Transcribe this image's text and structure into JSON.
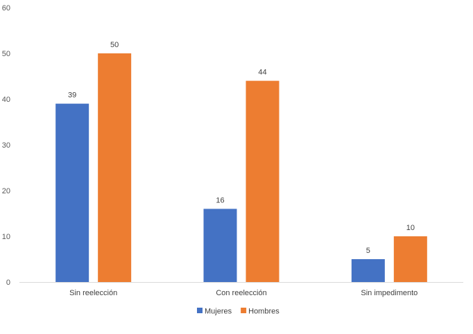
{
  "chart_data": {
    "type": "bar",
    "categories": [
      "Sin reelección",
      "Con reelección",
      "Sin impedimento"
    ],
    "series": [
      {
        "name": "Mujeres",
        "values": [
          39,
          16,
          5
        ],
        "color": "#4472C4"
      },
      {
        "name": "Hombres",
        "values": [
          50,
          44,
          10
        ],
        "color": "#ED7D31"
      }
    ],
    "ylim": [
      0,
      60
    ],
    "yticks": [
      0,
      10,
      20,
      30,
      40,
      50,
      60
    ],
    "grid": false,
    "legend": "bottom",
    "data_labels": true
  }
}
